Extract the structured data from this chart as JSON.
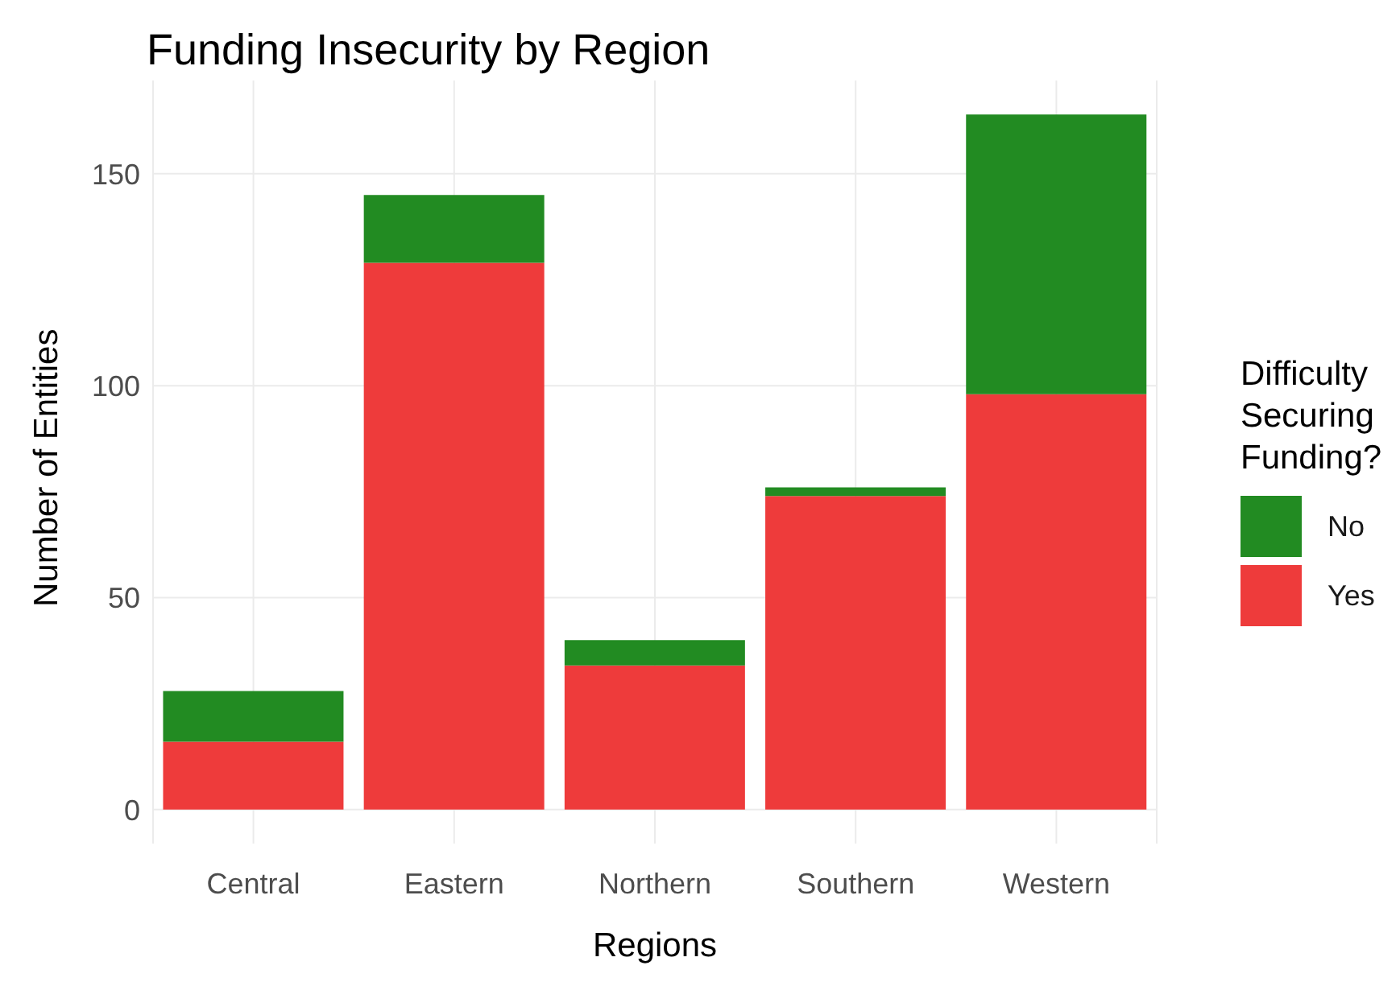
{
  "chart_data": {
    "type": "bar",
    "title": "Funding Insecurity by Region",
    "xlabel": "Regions",
    "ylabel": "Number of Entities",
    "legend_title": "Difficulty Securing Funding?",
    "categories": [
      "Central",
      "Eastern",
      "Northern",
      "Southern",
      "Western"
    ],
    "series": [
      {
        "name": "Yes",
        "color": "#ee3b3b",
        "values": [
          16,
          129,
          34,
          74,
          98
        ]
      },
      {
        "name": "No",
        "color": "#228b22",
        "values": [
          12,
          16,
          6,
          2,
          66
        ]
      }
    ],
    "stacked": true,
    "ylim": [
      -8,
      172
    ],
    "yticks": [
      0,
      50,
      100,
      150
    ],
    "grid": true,
    "legend": "right"
  }
}
